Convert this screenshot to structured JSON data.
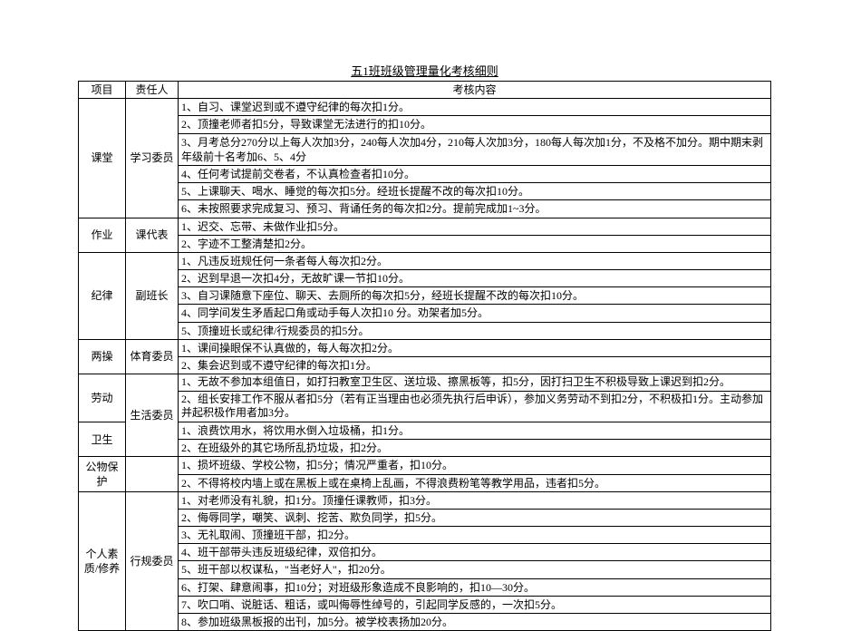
{
  "title": "五1班班级管理量化考核细则",
  "headers": {
    "c1": "项目",
    "c2": "责任人",
    "c3": "考核内容"
  },
  "sections": [
    {
      "project": "课堂",
      "person": "学习委员",
      "rows": [
        "1、自习、课堂迟到或不遵守纪律的每次扣1分。",
        "2、顶撞老师者扣5分，导致课堂无法进行的扣10分。",
        "3、月考总分270分以上每人次加3分，240每人次加4分，210每人次加3分，180每人每次加1分，不及格不加分。期中期末剥年级前十名考加6、5、4分",
        "4、任何考试提前交卷者，不认真检查者扣10分。",
        "5、上课聊天、喝水、睡觉的每次扣5分。经班长提醒不改的每次扣10分。",
        "6、未按照要求完成复习、预习、背诵任务的每次扣2分。提前完成加1~3分。"
      ]
    },
    {
      "project": "作业",
      "person": "课代表",
      "rows": [
        "1、迟交、忘带、未做作业扣5分。",
        "2、字迹不工整清楚扣2分。"
      ]
    },
    {
      "project": "纪律",
      "person": "副班长",
      "rows": [
        "1、凡违反班规任何一条者每人每次扣2分。",
        "2、迟到早退一次扣4分，无故旷课一节扣10分。",
        "3、自习课随意下座位、聊天、去厕所的每次扣5分，经班长提醒不改的每次扣10分。",
        "4、同学间发生矛盾起口角或动手每人次扣10 分。劝架者加5分。",
        "5、顶撞班长或纪律/行规委员的扣5分。"
      ]
    },
    {
      "project": "两操",
      "person": "体育委员",
      "rows": [
        "1、课间操眼保不认真做的，每人每次扣2分。",
        "2、集会迟到或不遵守纪律的每次扣1分。"
      ]
    },
    {
      "project": "劳动",
      "person": "生活委员",
      "personSpan": 2,
      "rows": [
        "1、无故不参加本组值日，如打扫教室卫生区、送垃圾、擦黑板等，扣5分，因打扫卫生不积极导致上课迟到扣2分。",
        "2、组长安排工作不服从者扣5分（若有正当理由也必须先执行后申诉），参加义务劳动不到扣2分，不积极扣1分。主动参加并起积极作用者加3分。"
      ],
      "twoLine": true
    },
    {
      "project": "卫生",
      "person": null,
      "rows": [
        "1、浪费饮用水，将饮用水倒入垃圾桶，扣1分。",
        "2、在班级外的其它场所乱扔垃圾，扣2分。"
      ]
    },
    {
      "project": "公物保护",
      "person": null,
      "personSpan": 0,
      "rows": [
        "1、损坏班级、学校公物，扣5分；情况严重者，扣10分。",
        "2、不得将校内墙上或在黑板上或在桌椅上乱画，不得浪费粉笔等教学用品，违者扣5分。"
      ]
    },
    {
      "project": "个人素质/修养",
      "person": "行规委员",
      "rows": [
        "1、对老师没有礼貌，扣1分。顶撞任课教师，扣3分。",
        "2、侮辱同学，嘲笑、讽刺、挖苦、欺负同学，扣5分。",
        "3、无礼取闹、顶撞班干部，扣2分。",
        "4、班干部带头违反班级纪律，双倍扣分。",
        "5、班干部以权谋私，\"当老好人\"，扣20分。",
        "6、打架、肆意闹事，扣10分；对班级形象造成不良影响的，扣10—30分。",
        "7、吹口哨、说脏话、粗话，或叫侮辱性绰号的，引起同学反感的，一次扣5分。",
        "8、参加班级黑板报的出刊，加5分。被学校表扬加20分。"
      ]
    }
  ]
}
